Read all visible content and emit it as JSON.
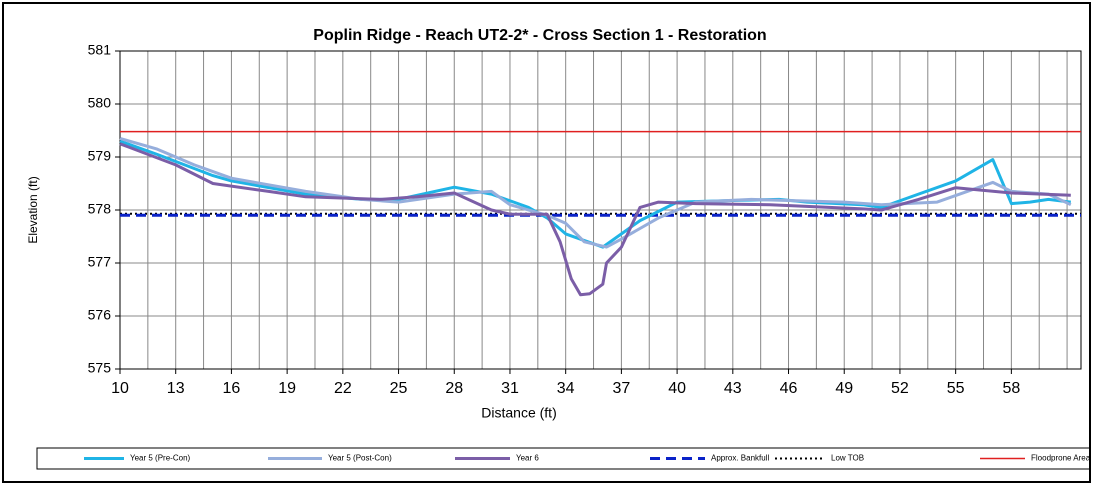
{
  "chart_data": {
    "type": "line",
    "title": "Poplin Ridge - Reach UT2-2* - Cross Section 1 - Restoration",
    "x_label": "Distance (ft)",
    "y_label": "Elevation (ft)",
    "xlim": [
      10,
      61.75
    ],
    "xticks": [
      10,
      13,
      16,
      19,
      22,
      25,
      28,
      31,
      34,
      37,
      40,
      43,
      46,
      49,
      52,
      55,
      58
    ],
    "x_minor_ticks": [
      11.5,
      14.5,
      17.5,
      20.5,
      23.5,
      26.5,
      29.5,
      32.5,
      35.5,
      38.5,
      41.5,
      44.5,
      47.5,
      50.5,
      53.5,
      56.5,
      59.5,
      61
    ],
    "ylim": [
      575,
      581
    ],
    "yticks": [
      575,
      576,
      577,
      578,
      579,
      580,
      581
    ],
    "grid": true,
    "legend": "bottom",
    "series": [
      {
        "name": "Year 5 (Pre-Con)",
        "color": "#1fb4e6",
        "style": "solid",
        "x": [
          10,
          12,
          15,
          16,
          20,
          23,
          25,
          28,
          30,
          32,
          33,
          34,
          36,
          37,
          38,
          40,
          43,
          45.5,
          47,
          50,
          51,
          53,
          55,
          57,
          58,
          59,
          60,
          61.2
        ],
        "values": [
          579.3,
          579.05,
          578.65,
          578.55,
          578.3,
          578.2,
          578.2,
          578.43,
          578.3,
          578.05,
          577.85,
          577.55,
          577.3,
          577.55,
          577.8,
          578.15,
          578.18,
          578.2,
          578.15,
          578.1,
          578.05,
          578.3,
          578.55,
          578.95,
          578.12,
          578.15,
          578.2,
          578.15
        ]
      },
      {
        "name": "Year 5 (Post-Con)",
        "color": "#96aedc",
        "style": "solid",
        "x": [
          10,
          12,
          14,
          16,
          20,
          23,
          25,
          28,
          30,
          31,
          33,
          34,
          35,
          36.2,
          37,
          39,
          41,
          44,
          49,
          51,
          54,
          57,
          58,
          60,
          61.2
        ],
        "values": [
          579.35,
          579.15,
          578.85,
          578.6,
          578.35,
          578.2,
          578.15,
          578.3,
          578.35,
          578.1,
          577.9,
          577.75,
          577.4,
          577.3,
          577.45,
          577.85,
          578.15,
          578.2,
          578.15,
          578.1,
          578.15,
          578.52,
          578.35,
          578.3,
          578.1
        ]
      },
      {
        "name": "Year 6",
        "color": "#7b5ea7",
        "style": "solid",
        "x": [
          10,
          13,
          15,
          18,
          20,
          24,
          26,
          28,
          30,
          31,
          33,
          33.7,
          34.3,
          34.8,
          35.3,
          36,
          36.2,
          37,
          38,
          39,
          41,
          45,
          50,
          51,
          53,
          55,
          58,
          61.2
        ],
        "values": [
          579.25,
          578.85,
          578.5,
          578.35,
          578.25,
          578.2,
          578.25,
          578.32,
          578.0,
          577.92,
          577.92,
          577.4,
          576.7,
          576.4,
          576.42,
          576.6,
          577.0,
          577.3,
          578.05,
          578.15,
          578.12,
          578.1,
          578.02,
          578.0,
          578.2,
          578.42,
          578.32,
          578.28
        ]
      },
      {
        "name": "Approx. Bankfull",
        "color": "#0a22c8",
        "style": "dashed",
        "x": [
          10,
          61.75
        ],
        "values": [
          577.9,
          577.9
        ]
      },
      {
        "name": "Low TOB",
        "color": "#000000",
        "style": "dotted",
        "x": [
          10,
          61.75
        ],
        "values": [
          577.93,
          577.93
        ]
      },
      {
        "name": "Floodprone Area",
        "color": "#e02020",
        "style": "solid",
        "x": [
          10,
          61.75
        ],
        "values": [
          579.48,
          579.48
        ]
      }
    ]
  }
}
